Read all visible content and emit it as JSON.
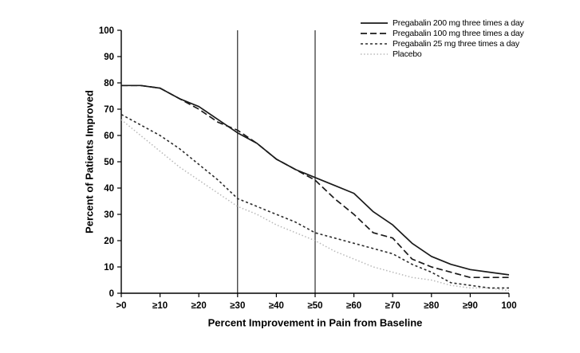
{
  "figure": {
    "xlabel": "Percent Improvement in Pain from Baseline",
    "ylabel": "Percent of Patients Improved"
  },
  "chart_data": {
    "type": "line",
    "title": "",
    "xlabel": "Percent Improvement in Pain from Baseline",
    "ylabel": "Percent of Patients Improved",
    "xlim": [
      0,
      100
    ],
    "ylim": [
      0,
      100
    ],
    "grid": false,
    "legend_position": "top-right",
    "x": [
      0,
      5,
      10,
      15,
      20,
      25,
      30,
      35,
      40,
      45,
      50,
      55,
      60,
      65,
      70,
      75,
      80,
      85,
      90,
      95,
      100
    ],
    "x_tick_values": [
      0,
      10,
      20,
      30,
      40,
      50,
      60,
      70,
      80,
      90,
      100
    ],
    "x_tick_labels": [
      ">0",
      "≥10",
      "≥20",
      "≥30",
      "≥40",
      "≥50",
      "≥60",
      "≥70",
      "≥80",
      "≥90",
      "100"
    ],
    "y_ticks": [
      0,
      10,
      20,
      30,
      40,
      50,
      60,
      70,
      80,
      90,
      100
    ],
    "reference_lines_x": [
      30,
      50
    ],
    "series": [
      {
        "name": "Pregabalin 200 mg three times a day",
        "style": "solid",
        "color": "#1a1a1a",
        "values": [
          79,
          79,
          78,
          74,
          71,
          66,
          61,
          57,
          51,
          47,
          44,
          41,
          38,
          31,
          26,
          19,
          14,
          11,
          9,
          8,
          7
        ]
      },
      {
        "name": "Pregabalin 100 mg three times a day",
        "style": "dashed",
        "color": "#1a1a1a",
        "values": [
          79,
          79,
          78,
          74,
          70,
          65,
          62,
          57,
          51,
          47,
          43,
          36,
          30,
          23,
          21,
          13,
          10,
          8,
          6,
          6,
          6
        ]
      },
      {
        "name": "Pregabalin 25 mg three times a day",
        "style": "dense-dotted",
        "color": "#2a2a2a",
        "values": [
          68,
          64,
          60,
          55,
          49,
          43,
          36,
          33,
          30,
          27,
          23,
          21,
          19,
          17,
          15,
          11,
          8,
          4,
          3,
          2,
          2
        ]
      },
      {
        "name": "Placebo",
        "style": "dotted",
        "color": "#b8b8b8",
        "values": [
          66,
          60,
          54,
          48,
          43,
          38,
          33,
          30,
          26,
          23,
          20,
          16,
          13,
          10,
          8,
          6,
          5,
          3,
          2,
          2,
          1
        ]
      }
    ]
  }
}
